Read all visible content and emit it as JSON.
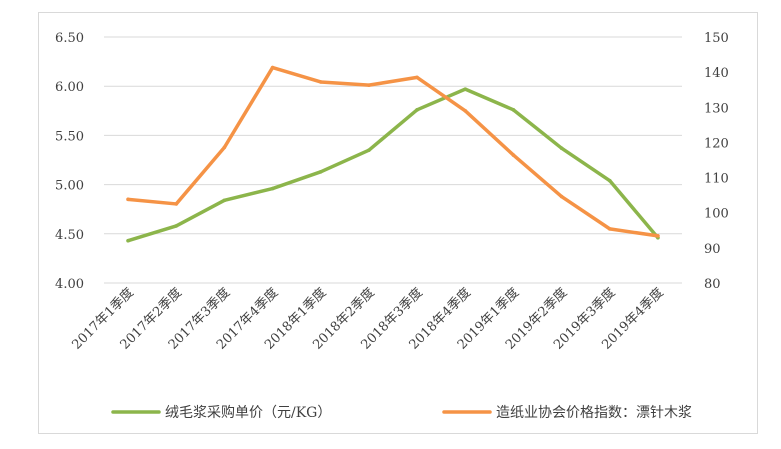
{
  "chart_data": {
    "type": "line",
    "categories": [
      "2017年1季度",
      "2017年2季度",
      "2017年3季度",
      "2017年4季度",
      "2018年1季度",
      "2018年2季度",
      "2018年3季度",
      "2018年4季度",
      "2019年1季度",
      "2019年2季度",
      "2019年3季度",
      "2019年4季度"
    ],
    "series": [
      {
        "name": "绒毛浆采购单价（元/KG）",
        "axis": "left",
        "color": "#8cb54b",
        "values": [
          4.43,
          4.58,
          4.84,
          4.96,
          5.13,
          5.35,
          5.76,
          5.97,
          5.76,
          5.37,
          5.04,
          4.46
        ]
      },
      {
        "name": "造纸业协会价格指数：漂针木浆",
        "axis": "right",
        "color": "#f59346",
        "values": [
          103.8,
          102.5,
          118.6,
          141.3,
          137.2,
          136.3,
          138.5,
          129.0,
          116.4,
          104.6,
          95.4,
          93.4
        ]
      }
    ],
    "y_left": {
      "min": 4.0,
      "max": 6.5,
      "step": 0.5,
      "tick_labels": [
        "4.00",
        "4.50",
        "5.00",
        "5.50",
        "6.00",
        "6.50"
      ]
    },
    "y_right": {
      "min": 80,
      "max": 150,
      "step": 10,
      "tick_labels": [
        "80",
        "90",
        "100",
        "110",
        "120",
        "130",
        "140",
        "150"
      ]
    },
    "grid": true,
    "legend_position": "bottom"
  }
}
